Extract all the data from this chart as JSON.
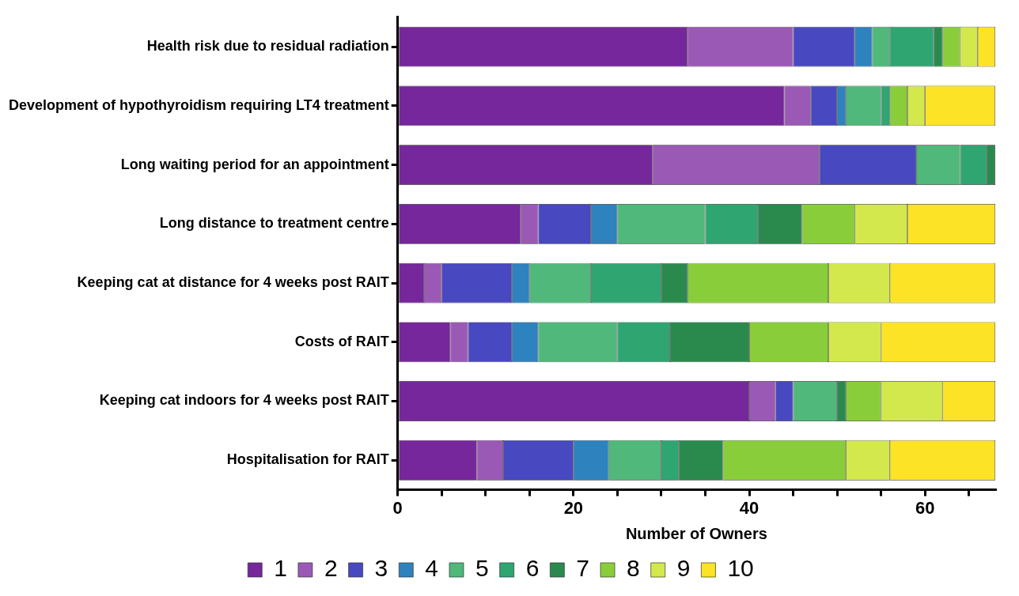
{
  "chart_data": {
    "type": "bar",
    "orientation": "horizontal",
    "stacked": true,
    "xlabel": "Number of Owners",
    "categories": [
      "Health risk due to residual radiation",
      "Development of hypothyroidism requiring LT4 treatment",
      "Long waiting period for an appointment",
      "Long distance to treatment centre",
      "Keeping cat at distance for 4 weeks post RAIT",
      "Costs of RAIT",
      "Keeping cat indoors for 4 weeks post RAIT",
      "Hospitalisation for RAIT"
    ],
    "series": [
      {
        "name": "1",
        "color": "#76279b",
        "values": [
          33,
          44,
          29,
          14,
          3,
          6,
          40,
          9
        ]
      },
      {
        "name": "2",
        "color": "#9b59b6",
        "values": [
          12,
          3,
          19,
          2,
          2,
          2,
          3,
          3
        ]
      },
      {
        "name": "3",
        "color": "#4848c0",
        "values": [
          7,
          3,
          11,
          6,
          8,
          5,
          2,
          8
        ]
      },
      {
        "name": "4",
        "color": "#2e82bd",
        "values": [
          2,
          1,
          0,
          3,
          2,
          3,
          0,
          4
        ]
      },
      {
        "name": "5",
        "color": "#4fb87a",
        "values": [
          2,
          4,
          5,
          10,
          7,
          9,
          5,
          6
        ]
      },
      {
        "name": "6",
        "color": "#2fa572",
        "values": [
          5,
          1,
          3,
          6,
          8,
          6,
          0,
          2
        ]
      },
      {
        "name": "7",
        "color": "#2a8a4e",
        "values": [
          1,
          0,
          1,
          5,
          3,
          9,
          1,
          5
        ]
      },
      {
        "name": "8",
        "color": "#8acd3a",
        "values": [
          2,
          2,
          0,
          6,
          16,
          9,
          4,
          14
        ]
      },
      {
        "name": "9",
        "color": "#d2e84c",
        "values": [
          2,
          2,
          0,
          6,
          7,
          6,
          7,
          5
        ]
      },
      {
        "name": "10",
        "color": "#fde325",
        "values": [
          2,
          8,
          0,
          10,
          12,
          13,
          6,
          12
        ]
      }
    ],
    "xlim": [
      0,
      68
    ],
    "xticks": [
      0,
      {
        "value": 5,
        "label": null
      },
      {
        "value": 10,
        "label": null
      },
      {
        "value": 15,
        "label": null
      },
      20,
      {
        "value": 25,
        "label": null
      },
      {
        "value": 30,
        "label": null
      },
      {
        "value": 35,
        "label": null
      },
      40,
      {
        "value": 45,
        "label": null
      },
      {
        "value": 50,
        "label": null
      },
      {
        "value": 55,
        "label": null
      },
      60,
      {
        "value": 65,
        "label": null
      }
    ],
    "grid": false,
    "legend": "bottom"
  }
}
